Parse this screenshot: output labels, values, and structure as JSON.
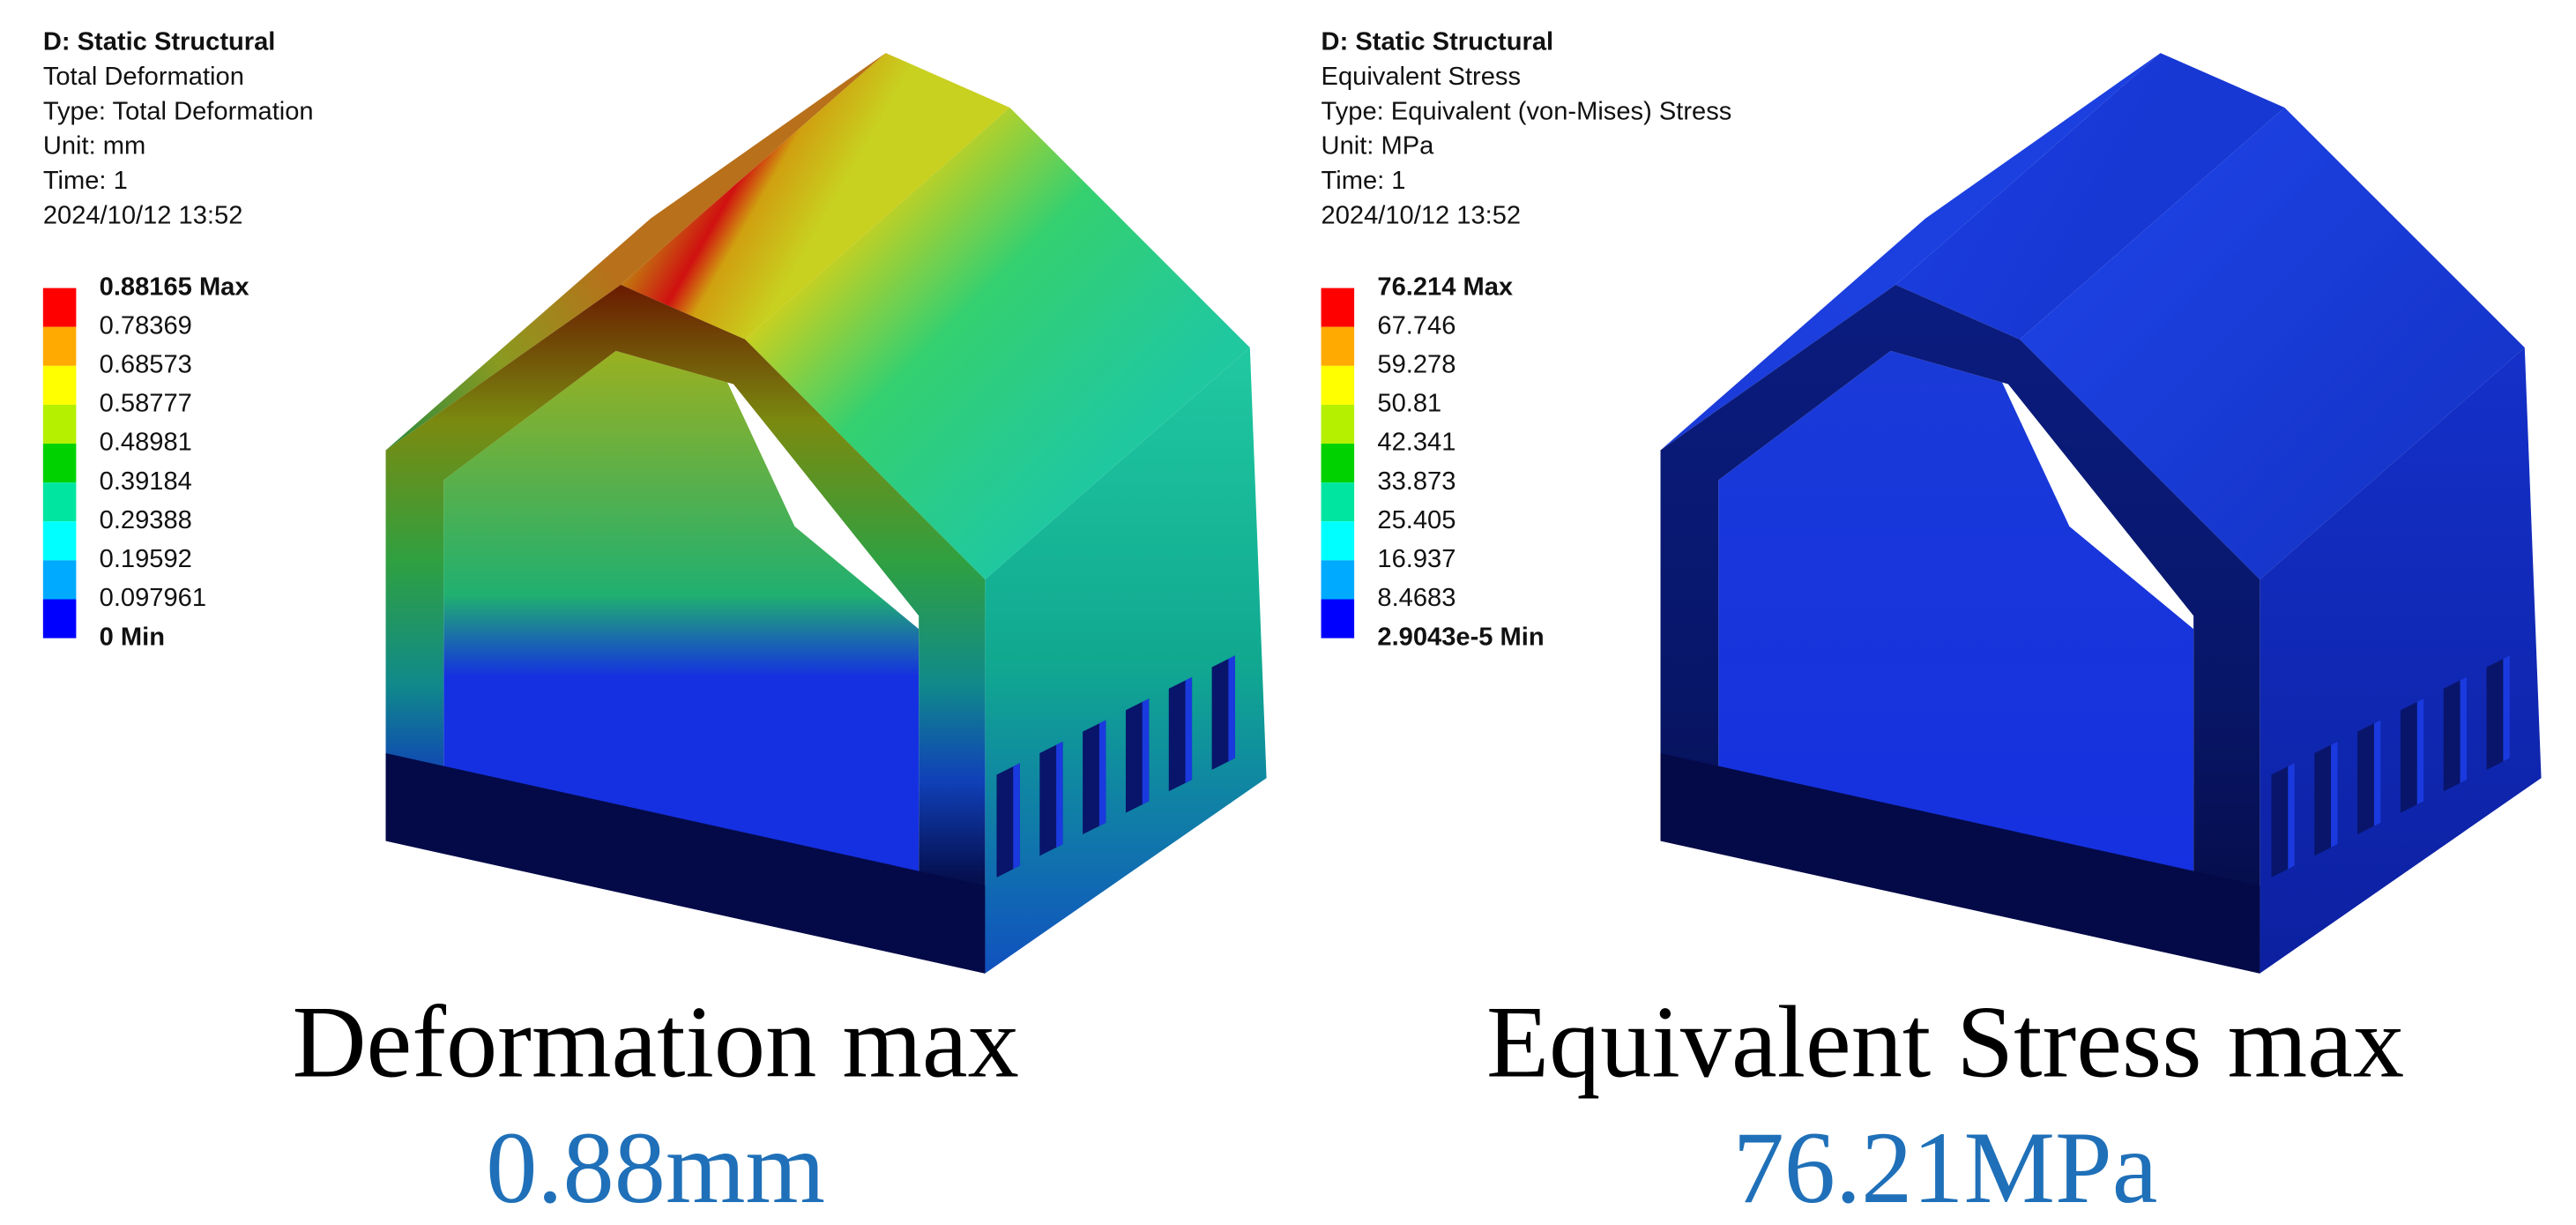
{
  "panels": [
    {
      "header": [
        "D: Static Structural",
        "Total Deformation",
        "Type: Total Deformation",
        "Unit: mm",
        "Time: 1",
        "2024/10/12 13:52"
      ],
      "legend": {
        "labels": [
          "0.88165 Max",
          "0.78369",
          "0.68573",
          "0.58777",
          "0.48981",
          "0.39184",
          "0.29388",
          "0.19592",
          "0.097961",
          "0 Min"
        ],
        "colors": [
          "#ff0000",
          "#ffaa00",
          "#ffff00",
          "#b4f000",
          "#00d200",
          "#00e6a0",
          "#00ffff",
          "#00aaff",
          "#0000ff"
        ]
      },
      "caption": {
        "title": "Deformation max",
        "value": "0.88mm"
      }
    },
    {
      "header": [
        "D: Static Structural",
        "Equivalent Stress",
        "Type: Equivalent (von-Mises) Stress",
        "Unit: MPa",
        "Time: 1",
        "2024/10/12 13:52"
      ],
      "legend": {
        "labels": [
          "76.214 Max",
          "67.746",
          "59.278",
          "50.81",
          "42.341",
          "33.873",
          "25.405",
          "16.937",
          "8.4683",
          "2.9043e-5 Min"
        ],
        "colors": [
          "#ff0000",
          "#ffaa00",
          "#ffff00",
          "#b4f000",
          "#00d200",
          "#00e6a0",
          "#00ffff",
          "#00aaff",
          "#0000ff"
        ]
      },
      "caption": {
        "title": "Equivalent Stress max",
        "value": "76.21MPa"
      }
    }
  ]
}
